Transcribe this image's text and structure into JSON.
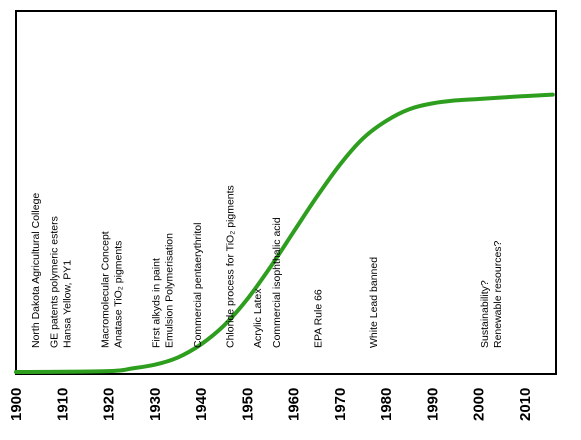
{
  "chart_data": {
    "type": "line",
    "title": "",
    "xlabel": "",
    "ylabel": "",
    "x_range": [
      1900,
      2016
    ],
    "x_ticks": [
      "1900",
      "1910",
      "1920",
      "1930",
      "1940",
      "1950",
      "1960",
      "1970",
      "1980",
      "1990",
      "2000",
      "2010"
    ],
    "y_range": [
      0,
      1
    ],
    "grid": false,
    "legend": "none",
    "colors": {
      "curve": "#2e9e1e",
      "frame": "#000000",
      "text": "#000000"
    },
    "series": [
      {
        "x": [
          1900,
          1920,
          1925,
          1930,
          1935,
          1940,
          1945,
          1950,
          1955,
          1960,
          1965,
          1970,
          1975,
          1980,
          1985,
          1990,
          1995,
          2000,
          2005,
          2010,
          2016
        ],
        "values": [
          0.0,
          0.003,
          0.012,
          0.025,
          0.05,
          0.095,
          0.16,
          0.25,
          0.36,
          0.48,
          0.6,
          0.71,
          0.8,
          0.86,
          0.9,
          0.92,
          0.93,
          0.935,
          0.94,
          0.945,
          0.95
        ]
      }
    ],
    "annotations": [
      {
        "year": 1905,
        "lines": [
          "North Dakota Agricultural College"
        ]
      },
      {
        "year": 1909,
        "lines": [
          "GE patents polymeric esters",
          "Hansa Yellow, PY1"
        ]
      },
      {
        "year": 1920,
        "lines": [
          "Macromolecular Concept",
          "Anatase TiO₂ pigments"
        ]
      },
      {
        "year": 1931,
        "lines": [
          "First alkyds in paint",
          "Emulsion Polymerisation"
        ]
      },
      {
        "year": 1940,
        "lines": [
          "Commercial pentaerythritol"
        ]
      },
      {
        "year": 1947,
        "lines": [
          "Chloride process for TiO₂ pigments"
        ]
      },
      {
        "year": 1953,
        "lines": [
          "Acrylic Latex"
        ]
      },
      {
        "year": 1957,
        "lines": [
          "Commercial isophthalic acid"
        ]
      },
      {
        "year": 1966,
        "lines": [
          "EPA Rule 66"
        ]
      },
      {
        "year": 1978,
        "lines": [
          "White Lead banned"
        ]
      },
      {
        "year": 2002,
        "lines": [
          "Sustainability?",
          "Renewable resources?"
        ]
      }
    ]
  }
}
